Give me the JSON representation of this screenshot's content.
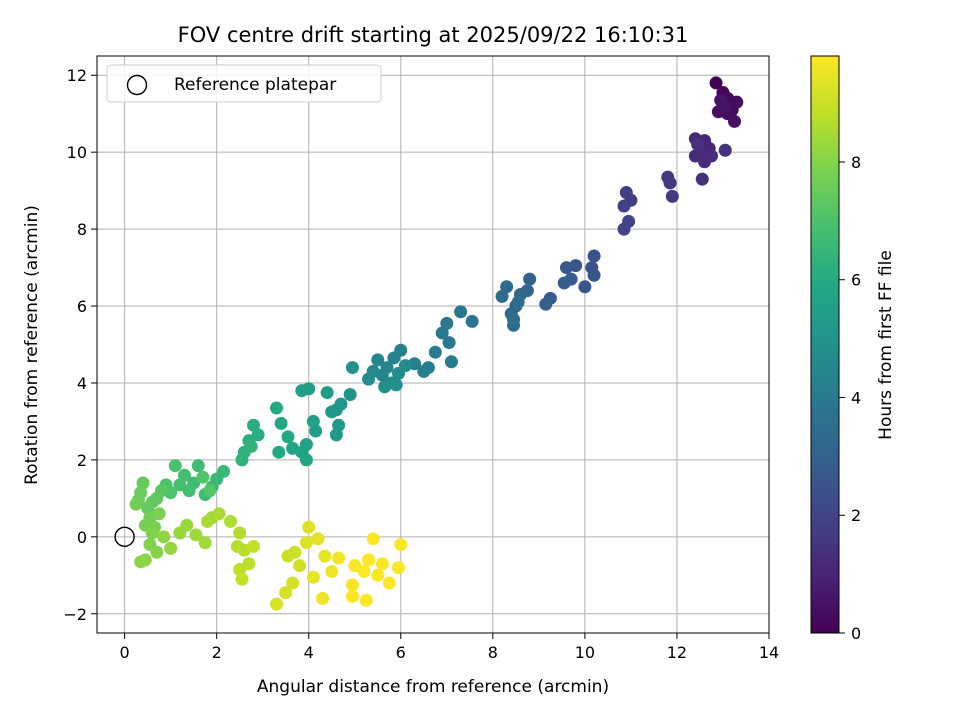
{
  "chart_data": {
    "type": "scatter",
    "title": "FOV centre drift starting at 2025/09/22 16:10:31",
    "xlabel": "Angular distance from reference (arcmin)",
    "ylabel": "Rotation from reference (arcmin)",
    "xlim": [
      -0.6,
      14.0
    ],
    "ylim": [
      -2.5,
      12.5
    ],
    "xticks": [
      "0",
      "2",
      "4",
      "6",
      "8",
      "10",
      "12",
      "14"
    ],
    "yticks": [
      "−2",
      "0",
      "2",
      "4",
      "6",
      "8",
      "10",
      "12"
    ],
    "grid": true,
    "legend": {
      "placement": "top-left",
      "entries": [
        "Reference platepar"
      ]
    },
    "reference_point": {
      "x": 0,
      "y": 0
    },
    "colorbar": {
      "label": "Hours from first FF file",
      "range": [
        0,
        9.8
      ],
      "ticks": [
        "0",
        "2",
        "4",
        "6",
        "8"
      ],
      "colormap": "viridis"
    },
    "series": [
      {
        "values_note_format": "x, y, hours",
        "points": [
          [
            12.85,
            11.8,
            0.1
          ],
          [
            13.0,
            11.55,
            0.15
          ],
          [
            13.1,
            11.4,
            0.2
          ],
          [
            13.2,
            11.1,
            0.25
          ],
          [
            13.3,
            11.3,
            0.3
          ],
          [
            13.1,
            11.0,
            0.35
          ],
          [
            12.9,
            11.05,
            0.4
          ],
          [
            13.25,
            10.8,
            0.45
          ],
          [
            13.05,
            11.2,
            0.5
          ],
          [
            12.95,
            11.35,
            0.55
          ],
          [
            12.4,
            10.35,
            1.0
          ],
          [
            12.6,
            10.3,
            1.05
          ],
          [
            12.7,
            10.1,
            1.1
          ],
          [
            12.5,
            10.0,
            1.15
          ],
          [
            12.4,
            9.9,
            1.2
          ],
          [
            12.6,
            9.75,
            1.25
          ],
          [
            12.75,
            9.9,
            1.3
          ],
          [
            13.05,
            10.05,
            1.35
          ],
          [
            12.55,
            9.3,
            1.4
          ],
          [
            12.45,
            10.2,
            1.45
          ],
          [
            11.8,
            9.35,
            1.6
          ],
          [
            11.85,
            9.2,
            1.65
          ],
          [
            11.9,
            8.85,
            1.7
          ],
          [
            10.9,
            8.95,
            1.8
          ],
          [
            11.0,
            8.75,
            1.85
          ],
          [
            10.85,
            8.6,
            1.9
          ],
          [
            10.95,
            8.2,
            1.95
          ],
          [
            10.85,
            8.0,
            2.0
          ],
          [
            10.2,
            7.3,
            2.5
          ],
          [
            10.15,
            7.0,
            2.55
          ],
          [
            10.2,
            6.8,
            2.6
          ],
          [
            10.0,
            6.5,
            2.65
          ],
          [
            9.8,
            7.05,
            2.7
          ],
          [
            9.6,
            7.0,
            2.75
          ],
          [
            9.7,
            6.7,
            2.8
          ],
          [
            9.55,
            6.6,
            2.85
          ],
          [
            9.25,
            6.2,
            2.9
          ],
          [
            9.15,
            6.05,
            2.95
          ],
          [
            8.8,
            6.7,
            3.1
          ],
          [
            8.75,
            6.4,
            3.15
          ],
          [
            8.6,
            6.3,
            3.2
          ],
          [
            8.5,
            6.0,
            3.25
          ],
          [
            8.4,
            5.8,
            3.3
          ],
          [
            8.45,
            5.5,
            3.35
          ],
          [
            8.3,
            6.5,
            3.4
          ],
          [
            8.2,
            6.25,
            3.45
          ],
          [
            8.55,
            6.1,
            3.5
          ],
          [
            8.45,
            5.65,
            3.55
          ],
          [
            7.55,
            5.6,
            3.8
          ],
          [
            7.3,
            5.85,
            3.85
          ],
          [
            7.0,
            5.55,
            3.9
          ],
          [
            6.9,
            5.3,
            3.95
          ],
          [
            7.05,
            5.05,
            4.0
          ],
          [
            7.1,
            4.55,
            4.05
          ],
          [
            6.75,
            4.8,
            4.1
          ],
          [
            6.6,
            4.4,
            4.15
          ],
          [
            6.5,
            4.3,
            4.2
          ],
          [
            6.3,
            4.5,
            4.25
          ],
          [
            6.0,
            4.85,
            4.3
          ],
          [
            5.85,
            4.65,
            4.35
          ],
          [
            5.7,
            4.4,
            4.4
          ],
          [
            5.6,
            4.2,
            4.45
          ],
          [
            5.5,
            4.6,
            4.5
          ],
          [
            5.4,
            4.3,
            4.55
          ],
          [
            5.8,
            4.0,
            4.6
          ],
          [
            5.95,
            4.25,
            4.65
          ],
          [
            6.1,
            4.45,
            4.7
          ],
          [
            5.3,
            4.1,
            4.75
          ],
          [
            5.65,
            3.9,
            4.8
          ],
          [
            5.9,
            3.95,
            4.85
          ],
          [
            4.95,
            4.4,
            5.0
          ],
          [
            4.9,
            3.7,
            5.05
          ],
          [
            4.7,
            3.45,
            5.1
          ],
          [
            4.6,
            3.3,
            5.15
          ],
          [
            4.5,
            3.25,
            5.2
          ],
          [
            4.65,
            2.9,
            5.25
          ],
          [
            4.6,
            2.65,
            5.3
          ],
          [
            4.4,
            3.75,
            5.35
          ],
          [
            4.0,
            3.85,
            5.4
          ],
          [
            3.85,
            3.8,
            5.45
          ],
          [
            4.1,
            3.0,
            5.5
          ],
          [
            4.15,
            2.75,
            5.55
          ],
          [
            3.95,
            2.4,
            5.6
          ],
          [
            3.85,
            2.2,
            5.65
          ],
          [
            3.95,
            2.0,
            5.7
          ],
          [
            3.65,
            2.3,
            5.75
          ],
          [
            3.55,
            2.6,
            5.8
          ],
          [
            3.4,
            2.95,
            5.85
          ],
          [
            3.35,
            2.2,
            5.9
          ],
          [
            3.3,
            3.35,
            5.95
          ],
          [
            2.9,
            2.65,
            6.05
          ],
          [
            2.8,
            2.9,
            6.1
          ],
          [
            2.7,
            2.5,
            6.15
          ],
          [
            2.6,
            2.2,
            6.2
          ],
          [
            2.55,
            2.0,
            6.25
          ],
          [
            2.75,
            2.35,
            6.3
          ],
          [
            2.15,
            1.7,
            6.5
          ],
          [
            2.0,
            1.5,
            6.55
          ],
          [
            1.9,
            1.3,
            6.6
          ],
          [
            1.75,
            1.1,
            6.65
          ],
          [
            1.6,
            1.85,
            6.7
          ],
          [
            1.5,
            1.4,
            6.75
          ],
          [
            1.4,
            1.2,
            6.8
          ],
          [
            1.3,
            1.6,
            6.85
          ],
          [
            1.2,
            1.35,
            6.9
          ],
          [
            1.1,
            1.85,
            6.95
          ],
          [
            1.0,
            1.15,
            7.0
          ],
          [
            0.9,
            1.35,
            7.05
          ],
          [
            1.7,
            1.55,
            7.1
          ],
          [
            1.85,
            1.2,
            7.15
          ],
          [
            0.8,
            1.2,
            7.3
          ],
          [
            0.7,
            1.0,
            7.35
          ],
          [
            0.6,
            0.9,
            7.4
          ],
          [
            0.5,
            0.75,
            7.45
          ],
          [
            0.4,
            1.4,
            7.5
          ],
          [
            0.35,
            1.15,
            7.55
          ],
          [
            0.3,
            0.95,
            7.6
          ],
          [
            0.25,
            0.85,
            7.65
          ],
          [
            0.55,
            0.5,
            7.7
          ],
          [
            0.45,
            0.3,
            7.75
          ],
          [
            0.65,
            0.25,
            7.8
          ],
          [
            0.75,
            0.6,
            7.85
          ],
          [
            0.6,
            0.1,
            7.9
          ],
          [
            0.55,
            -0.2,
            7.95
          ],
          [
            0.7,
            -0.4,
            8.0
          ],
          [
            0.45,
            -0.6,
            8.05
          ],
          [
            0.35,
            -0.65,
            8.1
          ],
          [
            0.85,
            0.0,
            8.15
          ],
          [
            1.0,
            -0.3,
            8.2
          ],
          [
            1.2,
            0.1,
            8.25
          ],
          [
            1.35,
            0.3,
            8.3
          ],
          [
            1.55,
            0.05,
            8.35
          ],
          [
            1.75,
            -0.15,
            8.4
          ],
          [
            1.9,
            0.5,
            8.45
          ],
          [
            1.8,
            0.4,
            8.5
          ],
          [
            2.05,
            0.6,
            8.55
          ],
          [
            2.3,
            0.4,
            8.6
          ],
          [
            2.5,
            0.1,
            8.65
          ],
          [
            2.45,
            -0.25,
            8.7
          ],
          [
            2.6,
            -0.35,
            8.75
          ],
          [
            2.7,
            -0.7,
            8.8
          ],
          [
            2.5,
            -0.85,
            8.85
          ],
          [
            2.55,
            -1.1,
            8.9
          ],
          [
            2.8,
            -0.25,
            8.95
          ],
          [
            3.55,
            -0.5,
            9.0
          ],
          [
            3.7,
            -0.4,
            9.05
          ],
          [
            3.8,
            -0.75,
            9.1
          ],
          [
            3.65,
            -1.2,
            9.15
          ],
          [
            3.5,
            -1.45,
            9.2
          ],
          [
            3.3,
            -1.75,
            9.25
          ],
          [
            3.95,
            -0.15,
            9.3
          ],
          [
            4.0,
            0.25,
            9.35
          ],
          [
            4.2,
            -0.05,
            9.4
          ],
          [
            4.35,
            -0.5,
            9.45
          ],
          [
            4.1,
            -1.05,
            9.5
          ],
          [
            4.3,
            -1.6,
            9.55
          ],
          [
            4.5,
            -0.9,
            9.6
          ],
          [
            4.65,
            -0.55,
            9.65
          ],
          [
            4.95,
            -1.25,
            9.7
          ],
          [
            5.0,
            -0.75,
            9.75
          ],
          [
            5.2,
            -0.9,
            9.75
          ],
          [
            5.3,
            -0.6,
            9.8
          ],
          [
            5.5,
            -1.0,
            9.8
          ],
          [
            5.6,
            -0.7,
            9.8
          ],
          [
            5.75,
            -1.2,
            9.8
          ],
          [
            5.95,
            -0.8,
            9.8
          ],
          [
            6.0,
            -0.2,
            9.8
          ],
          [
            5.25,
            -1.65,
            9.8
          ],
          [
            4.95,
            -1.55,
            9.8
          ],
          [
            5.4,
            -0.05,
            9.8
          ]
        ]
      }
    ]
  }
}
